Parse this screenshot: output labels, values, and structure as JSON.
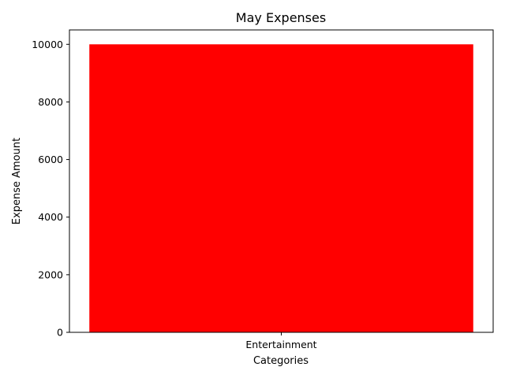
{
  "chart_data": {
    "type": "bar",
    "title": "May Expenses",
    "xlabel": "Categories",
    "ylabel": "Expense Amount",
    "categories": [
      "Entertainment"
    ],
    "values": [
      10000
    ],
    "ylim": [
      0,
      10500
    ],
    "yticks": [
      0,
      2000,
      4000,
      6000,
      8000,
      10000
    ],
    "bar_color": "#ff0000",
    "grid": false,
    "legend": "none"
  }
}
